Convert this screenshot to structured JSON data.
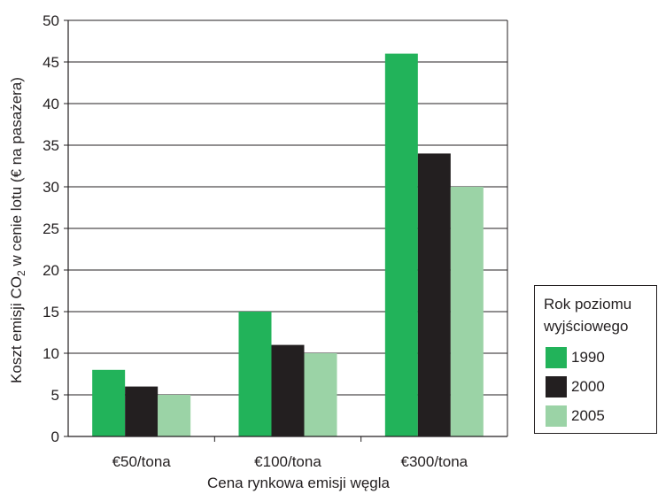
{
  "chart_data": {
    "type": "bar",
    "title": "",
    "xlabel": "Cena rynkowa emisji węgla",
    "ylabel": "Koszt emisji CO₂ w cenie lotu (€ na pasażera)",
    "ylim": [
      0,
      50
    ],
    "yticks": [
      0,
      5,
      10,
      15,
      20,
      25,
      30,
      35,
      40,
      45,
      50
    ],
    "grid": true,
    "legend_position": "bottom-right, outside plot",
    "categories": [
      "€50/tona",
      "€100/tona",
      "€300/tona"
    ],
    "series": [
      {
        "name": "1990",
        "color": "#22b35a",
        "values": [
          8,
          15,
          46
        ]
      },
      {
        "name": "2000",
        "color": "#231f20",
        "values": [
          6,
          11,
          34
        ]
      },
      {
        "name": "2005",
        "color": "#9bd3a6",
        "values": [
          5,
          10,
          30
        ]
      }
    ]
  },
  "legend": {
    "title_line1": "Rok poziomu",
    "title_line2": "wyjściowego",
    "items": [
      {
        "label": "1990",
        "color": "#22b35a"
      },
      {
        "label": "2000",
        "color": "#231f20"
      },
      {
        "label": "2005",
        "color": "#9bd3a6"
      }
    ]
  }
}
